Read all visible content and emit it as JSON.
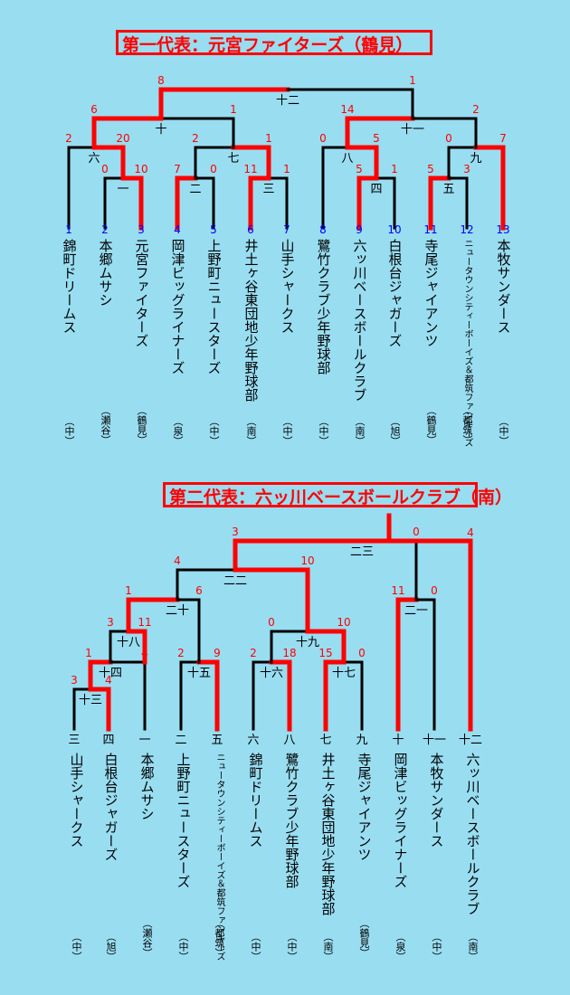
{
  "brackets": [
    {
      "title": "第一代表：元宮ファイターズ（鶴見）",
      "entries": [
        {
          "num": "1",
          "name": "錦町ドリームス",
          "district": "（中）"
        },
        {
          "num": "2",
          "name": "本郷ムサシ",
          "district": "（瀬谷）"
        },
        {
          "num": "3",
          "name": "元宮ファイターズ",
          "district": "（鶴見）"
        },
        {
          "num": "4",
          "name": "岡津ビッグライナーズ",
          "district": "（泉）"
        },
        {
          "num": "5",
          "name": "上野町ニュースターズ",
          "district": "（中）"
        },
        {
          "num": "6",
          "name": "井土ヶ谷東団地少年野球部",
          "district": "（南）"
        },
        {
          "num": "7",
          "name": "山手シャークス",
          "district": "（中）"
        },
        {
          "num": "8",
          "name": "鷺竹クラブ少年野球部",
          "district": "（中）"
        },
        {
          "num": "9",
          "name": "六ッ川ベースボールクラブ",
          "district": "（南）"
        },
        {
          "num": "10",
          "name": "白根台ジャガーズ",
          "district": "（旭）"
        },
        {
          "num": "11",
          "name": "寺尾ジャイアンツ",
          "district": "（鶴見）"
        },
        {
          "num": "12",
          "name": "ニュータウンシティーボーイズ＆都筑ファンキーズ",
          "district": "（都筑）"
        },
        {
          "num": "13",
          "name": "本牧サンダース",
          "district": "（中）"
        }
      ],
      "matches": [
        {
          "label": "一",
          "score_left": "0",
          "score_right": "10"
        },
        {
          "label": "二",
          "score_left": "7",
          "score_right": "0"
        },
        {
          "label": "三",
          "score_left": "11",
          "score_right": "1"
        },
        {
          "label": "四",
          "score_left": "5",
          "score_right": "1"
        },
        {
          "label": "五",
          "score_left": "5",
          "score_right": "3"
        },
        {
          "label": "六",
          "score_left": "2",
          "score_right": "20"
        },
        {
          "label": "七",
          "score_left": "2",
          "score_right": "1"
        },
        {
          "label": "八",
          "score_left": "0",
          "score_right": "5"
        },
        {
          "label": "九",
          "score_left": "0",
          "score_right": "7"
        },
        {
          "label": "十",
          "score_left": "6",
          "score_right": "1"
        },
        {
          "label": "十一",
          "score_left": "14",
          "score_right": "2"
        },
        {
          "label": "十二",
          "score_left": "8",
          "score_right": "1"
        }
      ]
    },
    {
      "title": "第二代表：六ッ川ベースボールクラブ（南）",
      "entries": [
        {
          "num": "三",
          "name": "山手シャークス",
          "district": "（中）"
        },
        {
          "num": "四",
          "name": "白根台ジャガーズ",
          "district": "（旭）"
        },
        {
          "num": "一",
          "name": "本郷ムサシ",
          "district": "（瀬谷）"
        },
        {
          "num": "二",
          "name": "上野町ニュースターズ",
          "district": "（中）"
        },
        {
          "num": "五",
          "name": "ニュータウンシティーボーイズ＆都筑ファンキーズ",
          "district": "（都筑）"
        },
        {
          "num": "六",
          "name": "錦町ドリームス",
          "district": "（中）"
        },
        {
          "num": "八",
          "name": "鷺竹クラブ少年野球部",
          "district": "（中）"
        },
        {
          "num": "七",
          "name": "井土ヶ谷東団地少年野球部",
          "district": "（南）"
        },
        {
          "num": "九",
          "name": "寺尾ジャイアンツ",
          "district": "（鶴見）"
        },
        {
          "num": "十",
          "name": "岡津ビッグライナーズ",
          "district": "（泉）"
        },
        {
          "num": "十一",
          "name": "本牧サンダース",
          "district": "（中）"
        },
        {
          "num": "十二",
          "name": "六ッ川ベースボールクラブ",
          "district": "（南）"
        }
      ],
      "matches": [
        {
          "label": "十三",
          "score_left": "3",
          "score_right": "4"
        },
        {
          "label": "十四",
          "score_left": "1",
          "score_right": "4"
        },
        {
          "label": "十五",
          "score_left": "2",
          "score_right": "9"
        },
        {
          "label": "十六",
          "score_left": "2",
          "score_right": "18"
        },
        {
          "label": "十七",
          "score_left": "15",
          "score_right": "0"
        },
        {
          "label": "十八",
          "score_left": "3",
          "score_right": "11"
        },
        {
          "label": "十九",
          "score_left": "0",
          "score_right": "10"
        },
        {
          "label": "二十",
          "score_left": "1",
          "score_right": "6"
        },
        {
          "label": "二一",
          "score_left": "11",
          "score_right": "0"
        },
        {
          "label": "二二",
          "score_left": "4",
          "score_right": "10"
        },
        {
          "label": "二三",
          "score_left": "3",
          "score_right": "0"
        }
      ],
      "final_score": "4"
    }
  ],
  "colors": {
    "background": "#99ddf1",
    "winner": "#ff0000",
    "line": "#000000",
    "entry_number": "#0000ff"
  }
}
